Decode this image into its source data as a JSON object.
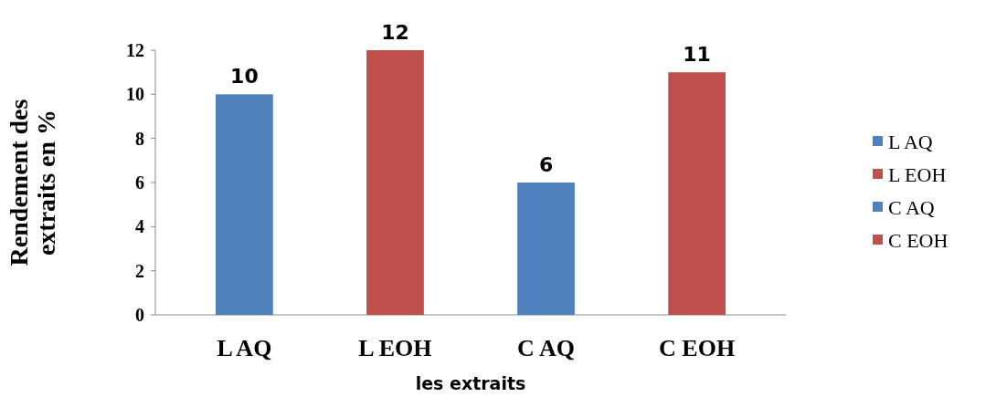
{
  "chart_data": {
    "type": "bar",
    "xlabel": "les extraits",
    "ylabel": "Rendement  des extraits en %",
    "categories": [
      "L AQ",
      "L EOH",
      "C AQ",
      "C EOH"
    ],
    "series": [
      {
        "name": "L AQ",
        "color": "#4f81bd",
        "values": [
          10,
          null,
          null,
          null
        ]
      },
      {
        "name": "L EOH",
        "color": "#c0504d",
        "values": [
          null,
          12,
          null,
          null
        ]
      },
      {
        "name": "C AQ",
        "color": "#4f81bd",
        "values": [
          null,
          null,
          6,
          null
        ]
      },
      {
        "name": "C EOH",
        "color": "#c0504d",
        "values": [
          null,
          null,
          null,
          11
        ]
      }
    ],
    "ylim": [
      0,
      12
    ],
    "yticks": [
      0,
      2,
      4,
      6,
      8,
      10,
      12
    ],
    "data_labels": true,
    "legend": "right",
    "grid": false
  }
}
